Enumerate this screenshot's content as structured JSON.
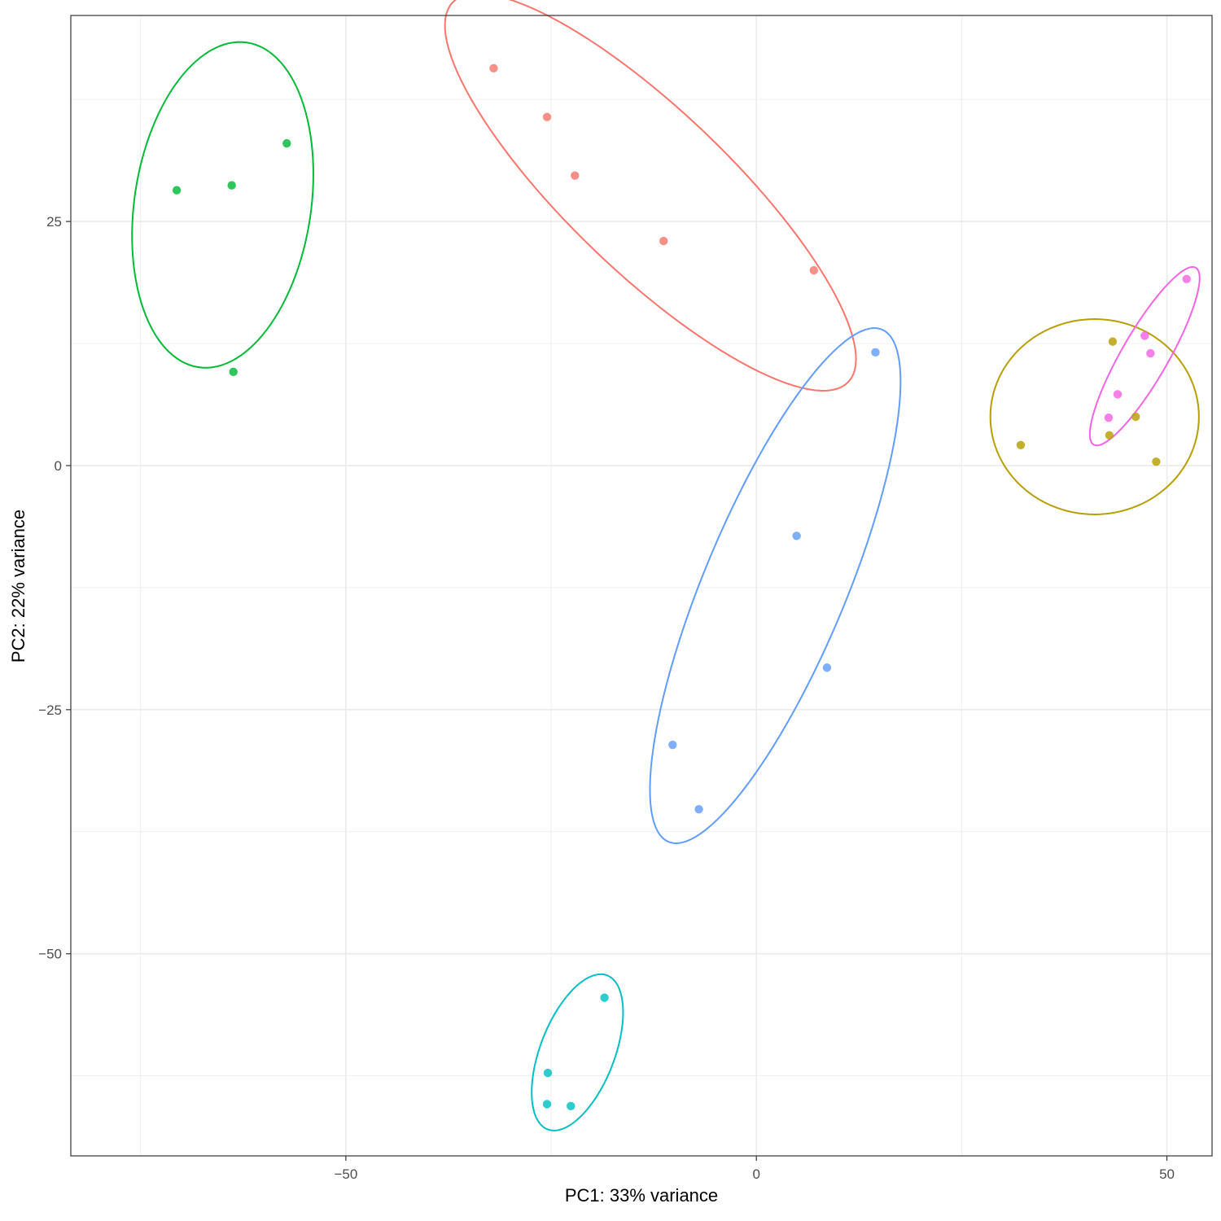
{
  "chart_data": {
    "type": "scatter",
    "xlabel": "PC1: 33% variance",
    "ylabel": "PC2: 22% variance",
    "xlim": [
      -83.5,
      55.5
    ],
    "ylim": [
      -70.7,
      46.1
    ],
    "x_ticks": [
      -50,
      0,
      50
    ],
    "x_tick_labels": [
      "−50",
      "0",
      "50"
    ],
    "y_ticks": [
      -50,
      -25,
      0,
      25
    ],
    "y_tick_labels": [
      "−50",
      "−25",
      "0",
      "25"
    ],
    "grid": true,
    "legend": "none",
    "series": [
      {
        "color": "#F8766D",
        "points": [
          [
            -32.0,
            40.7
          ],
          [
            -25.5,
            35.7
          ],
          [
            -22.1,
            29.7
          ],
          [
            -11.3,
            23.0
          ],
          [
            7.0,
            20.0
          ]
        ],
        "ellipse": {
          "center": [
            -12.9,
            28.0
          ],
          "semi_major": 31.0,
          "semi_minor": 8.9,
          "angle_deg": -38
        }
      },
      {
        "color": "#B79F00",
        "points": [
          [
            43.4,
            12.7
          ],
          [
            46.2,
            5.0
          ],
          [
            43.0,
            3.1
          ],
          [
            32.2,
            2.1
          ],
          [
            48.7,
            0.4
          ]
        ],
        "ellipse": {
          "center": [
            41.2,
            5.0
          ],
          "semi_major": 12.7,
          "semi_minor": 10.0,
          "angle_deg": 0
        }
      },
      {
        "color": "#00BA38",
        "points": [
          [
            -57.2,
            33.0
          ],
          [
            -70.6,
            28.2
          ],
          [
            -63.9,
            28.7
          ],
          [
            -63.7,
            9.6
          ]
        ],
        "ellipse": {
          "center": [
            -65.0,
            26.7
          ],
          "semi_major": 16.9,
          "semi_minor": 10.7,
          "angle_deg": 78
        }
      },
      {
        "color": "#00BFC4",
        "points": [
          [
            -18.5,
            -54.5
          ],
          [
            -25.4,
            -62.2
          ],
          [
            -25.5,
            -65.4
          ],
          [
            -22.6,
            -65.6
          ]
        ],
        "ellipse": {
          "center": [
            -21.8,
            -60.1
          ],
          "semi_major": 8.7,
          "semi_minor": 4.4,
          "angle_deg": 63
        }
      },
      {
        "color": "#619CFF",
        "points": [
          [
            14.5,
            11.6
          ],
          [
            4.9,
            -7.2
          ],
          [
            8.6,
            -20.7
          ],
          [
            -10.2,
            -28.6
          ],
          [
            -7.0,
            -35.2
          ]
        ],
        "ellipse": {
          "center": [
            2.3,
            -12.3
          ],
          "semi_major": 29.3,
          "semi_minor": 8.4,
          "angle_deg": 63
        }
      },
      {
        "color": "#F564E3",
        "points": [
          [
            52.4,
            19.1
          ],
          [
            47.3,
            13.3
          ],
          [
            48.0,
            11.5
          ],
          [
            44.0,
            7.3
          ],
          [
            42.9,
            4.9
          ]
        ],
        "ellipse": {
          "center": [
            47.3,
            11.2
          ],
          "semi_major": 11.0,
          "semi_minor": 2.7,
          "angle_deg": 55
        }
      }
    ]
  }
}
